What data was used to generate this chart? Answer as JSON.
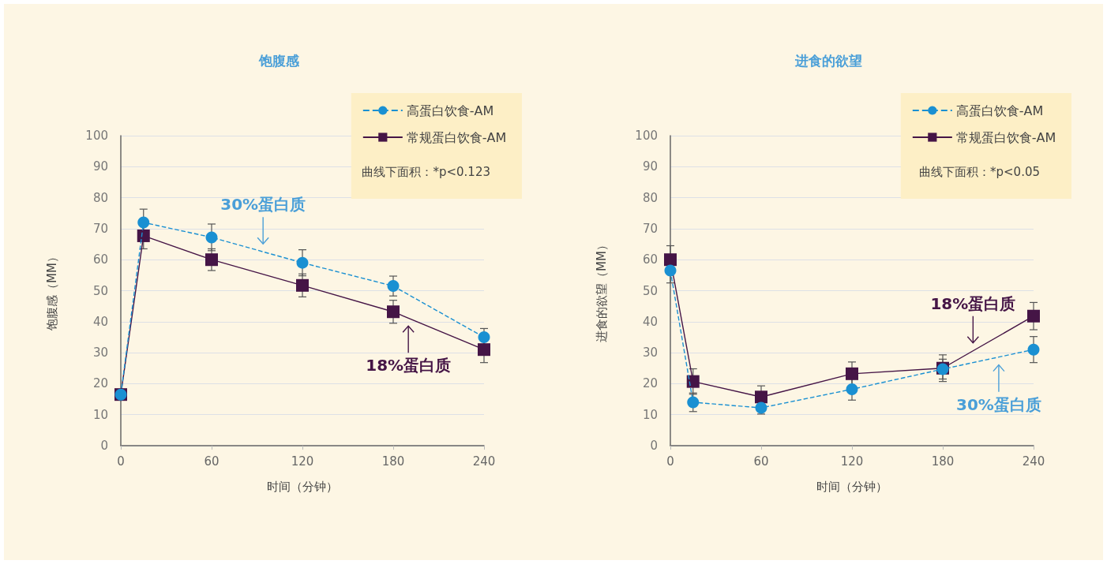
{
  "chart_data": [
    {
      "type": "line",
      "title": "饱腹感",
      "xlabel": "时间（分钟）",
      "ylabel": "饱腹感（MM）",
      "x": [
        0,
        15,
        60,
        120,
        180,
        240
      ],
      "xlim": [
        0,
        240
      ],
      "xticks": [
        0,
        60,
        120,
        180,
        240
      ],
      "ylim": [
        0,
        100
      ],
      "yticks": [
        0,
        10,
        20,
        30,
        40,
        50,
        60,
        70,
        80,
        90,
        100
      ],
      "grid": "y",
      "legend": "top right",
      "series": [
        {
          "name": "高蛋白饮食-AM",
          "color": "#1a90d2",
          "marker": "circle",
          "line_style": "dashed",
          "values": [
            16.5,
            72,
            67.2,
            59,
            51.5,
            35
          ],
          "errors": [
            null,
            4.3,
            4.3,
            4.2,
            3.2,
            2.8
          ]
        },
        {
          "name": "常规蛋白饮食-AM",
          "color": "#451546",
          "marker": "square",
          "line_style": "solid",
          "values": [
            16.5,
            67.7,
            60,
            51.7,
            43.2,
            31
          ],
          "errors": [
            null,
            4.2,
            3.5,
            3.7,
            3.7,
            4.2
          ]
        }
      ],
      "annotations": [
        "曲线下面积：*p<0.123",
        "30%蛋白质",
        "18%蛋白质"
      ]
    },
    {
      "type": "line",
      "title": "进食的欲望",
      "xlabel": "时间（分钟）",
      "ylabel": "进食的欲望（MM）",
      "x": [
        0,
        15,
        60,
        120,
        180,
        240
      ],
      "xlim": [
        0,
        240
      ],
      "xticks": [
        0,
        60,
        120,
        180,
        240
      ],
      "ylim": [
        0,
        100
      ],
      "yticks": [
        0,
        10,
        20,
        30,
        40,
        50,
        60,
        70,
        80,
        90,
        100
      ],
      "grid": "y",
      "legend": "top right",
      "series": [
        {
          "name": "高蛋白饮食-AM",
          "color": "#1a90d2",
          "marker": "circle",
          "line_style": "dashed",
          "values": [
            56.5,
            14,
            12.2,
            18.2,
            24.7,
            31
          ],
          "errors": [
            4,
            3,
            2,
            3.5,
            3.2,
            4.2
          ]
        },
        {
          "name": "常规蛋白饮食-AM",
          "color": "#451546",
          "marker": "square",
          "line_style": "solid",
          "values": [
            60,
            20.7,
            15.7,
            23.2,
            25,
            41.8
          ],
          "errors": [
            4.5,
            4.1,
            3.6,
            3.8,
            4.3,
            4.4
          ]
        }
      ],
      "annotations": [
        "曲线下面积：*p<0.05",
        "30%蛋白质",
        "18%蛋白质"
      ]
    }
  ]
}
